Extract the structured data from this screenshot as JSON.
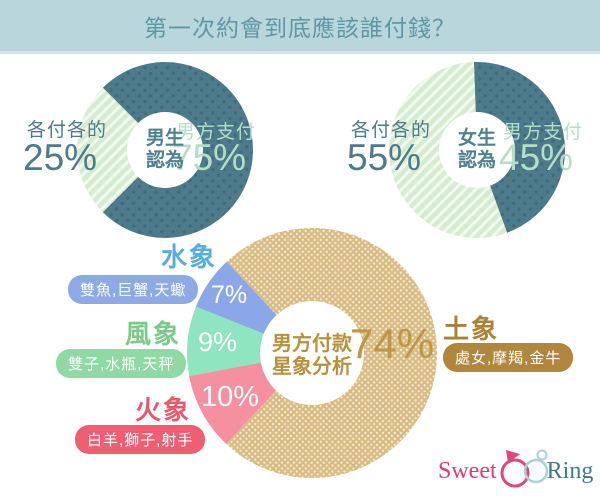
{
  "title": "第一次約會到底應該誰付錢？",
  "logo": {
    "sweet": "Sweet",
    "ring": "Ring"
  },
  "colors": {
    "header_bg": "#b9d6dc",
    "title_text": "#5f97a4",
    "teal_dark": "#4d7b8b",
    "teal_dot": "#3f6b7c",
    "mint_light_slice": "#d6ecd0",
    "mint_text": "#b5dfc5",
    "tan_slice": "#d9bc84",
    "gold_text": "#b8913f",
    "water_blue_slice": "#8ba7e8",
    "water_blue_label": "#57aedd",
    "air_green_slice": "#8fe5c0",
    "air_green_label": "#7bca87",
    "air_green_badge": "#8fd9a4",
    "fire_pink_slice": "#f4909f",
    "fire_red_label": "#e8596b",
    "fire_red_badge": "#ee5f72",
    "earth_brown_label": "#ad8136",
    "earth_brown_badge": "#b1873e",
    "logo_pink": "#dc3d74",
    "logo_teal": "#41798a"
  },
  "chart_data": [
    {
      "type": "pie",
      "id": "men",
      "center_label": [
        "男生",
        "認為"
      ],
      "start_angle": 315,
      "slices": [
        {
          "label": "男方支付",
          "value": 75,
          "text": "75%",
          "color": "#4d7b8b",
          "pattern": {
            "type": "dots",
            "size": 8,
            "dot": 1.7,
            "fg": "#3f6b7c",
            "rotate": 45
          }
        },
        {
          "label": "各付各的",
          "value": 25,
          "text": "25%",
          "color": "#d6ecd0",
          "pattern": {
            "type": "stripes",
            "size": 7.5,
            "sw": 3,
            "fg": "#f2f9ee",
            "rotate": -45
          }
        }
      ]
    },
    {
      "type": "pie",
      "id": "women",
      "center_label": [
        "女生",
        "認為"
      ],
      "start_angle": 358,
      "slices": [
        {
          "label": "男方支付",
          "value": 45,
          "text": "45%",
          "color": "#4d7b8b",
          "pattern": {
            "type": "dots",
            "size": 8,
            "dot": 1.7,
            "fg": "#3f6b7c",
            "rotate": 45
          }
        },
        {
          "label": "各付各的",
          "value": 55,
          "text": "55%",
          "color": "#d6ecd0",
          "pattern": {
            "type": "stripes",
            "size": 7.5,
            "sw": 3,
            "fg": "#f2f9ee",
            "rotate": -45
          }
        }
      ]
    },
    {
      "type": "pie",
      "id": "zodiac",
      "center_label": [
        "男方付款",
        "星象分析"
      ],
      "start_angle": 317,
      "slices": [
        {
          "label": "土象",
          "signs": "處女,摩羯,金牛",
          "value": 74,
          "text": "74%",
          "color": "#d9bc84",
          "pattern": {
            "type": "dots",
            "size": 4.2,
            "dot": 1.05,
            "fg": "#f8f3e3",
            "rotate": 45
          }
        },
        {
          "label": "火象",
          "signs": "白羊,獅子,射手",
          "value": 10,
          "text": "10%",
          "color": "#f4909f"
        },
        {
          "label": "風象",
          "signs": "雙子,水瓶,天秤",
          "value": 9,
          "text": "9%",
          "color": "#8fe5c0"
        },
        {
          "label": "水象",
          "signs": "雙魚,巨蟹,天蠍",
          "value": 7,
          "text": "7%",
          "color": "#8ba7e8"
        }
      ]
    }
  ]
}
